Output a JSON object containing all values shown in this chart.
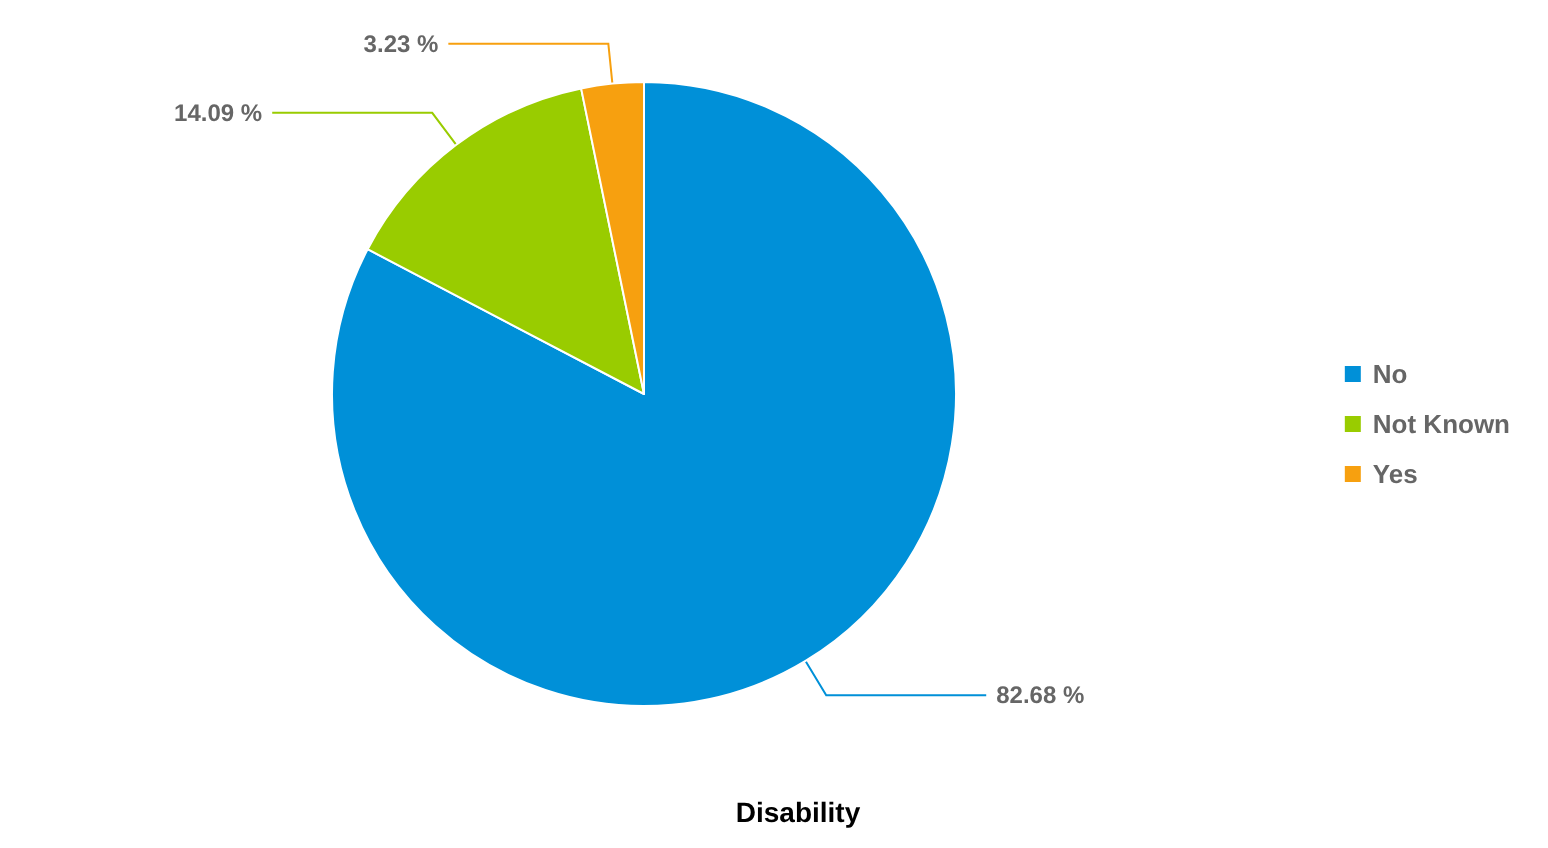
{
  "chart_data": {
    "type": "pie",
    "title": "Disability",
    "categories": [
      "No",
      "Not Known",
      "Yes"
    ],
    "values": [
      82.68,
      14.09,
      3.23
    ],
    "colors": [
      "#0090d8",
      "#99cc00",
      "#f7a00f"
    ],
    "value_labels": [
      "82.68 %",
      "14.09 %",
      "3.23 %"
    ],
    "legend": "right"
  }
}
